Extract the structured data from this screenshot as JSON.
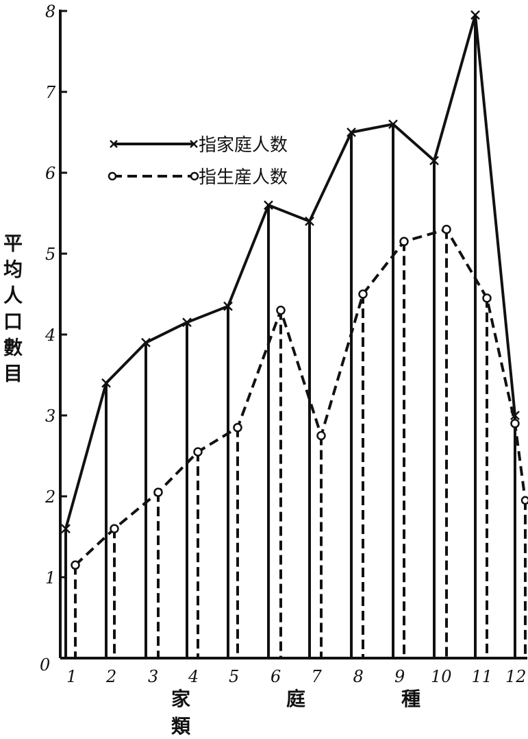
{
  "chart_data": {
    "type": "line",
    "categories": [
      "1",
      "2",
      "3",
      "4",
      "5",
      "6",
      "7",
      "8",
      "9",
      "10",
      "11",
      "12"
    ],
    "series": [
      {
        "name": "指家庭人数",
        "style": "solid",
        "marker": "x",
        "values": [
          1.6,
          3.4,
          3.9,
          4.15,
          4.35,
          5.6,
          5.4,
          6.5,
          6.6,
          6.15,
          7.95,
          3.0
        ]
      },
      {
        "name": "指生産人数",
        "style": "dashed",
        "marker": "o",
        "values": [
          1.15,
          1.6,
          2.05,
          2.55,
          2.85,
          4.3,
          2.75,
          4.5,
          5.15,
          5.3,
          4.45,
          2.9
        ]
      }
    ],
    "trailing_point": {
      "series": "指生産人数",
      "value": 1.95
    },
    "xlabel": "家　庭　種　類",
    "ylabel": "平均人口數目",
    "y_ticks": [
      "0",
      "1",
      "2",
      "3",
      "4",
      "5",
      "6",
      "7",
      "8"
    ],
    "ylim": [
      0,
      8
    ],
    "grid": false,
    "legend_position": "upper-left",
    "line_color": "#111111"
  }
}
